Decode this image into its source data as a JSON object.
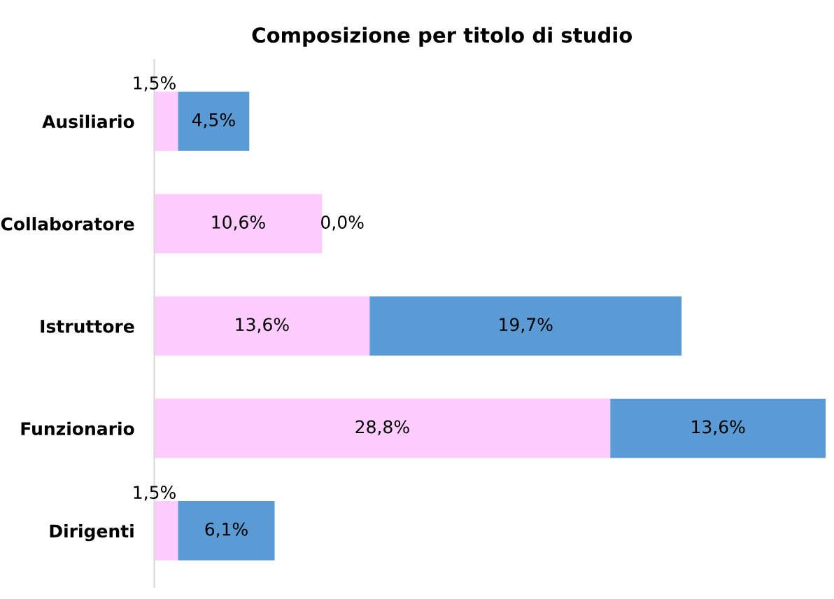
{
  "chart_data": {
    "type": "bar",
    "title": "Composizione per titolo di studio",
    "orientation": "horizontal",
    "stacked": true,
    "categories": [
      "Ausiliario",
      "Collaboratore",
      "Istruttore",
      "Funzionario",
      "Dirigenti"
    ],
    "series": [
      {
        "color": "#ffccff",
        "values": [
          1.5,
          10.6,
          13.6,
          28.8,
          1.5
        ],
        "value_labels": [
          "1,5%",
          "10,6%",
          "13,6%",
          "28,8%",
          "1,5%"
        ]
      },
      {
        "color": "#5b9bd5",
        "values": [
          4.5,
          0.0,
          19.7,
          13.6,
          6.1
        ],
        "value_labels": [
          "4,5%",
          "0,0%",
          "19,7%",
          "13,6%",
          "6,1%"
        ]
      }
    ],
    "grid": false,
    "legend": false
  }
}
